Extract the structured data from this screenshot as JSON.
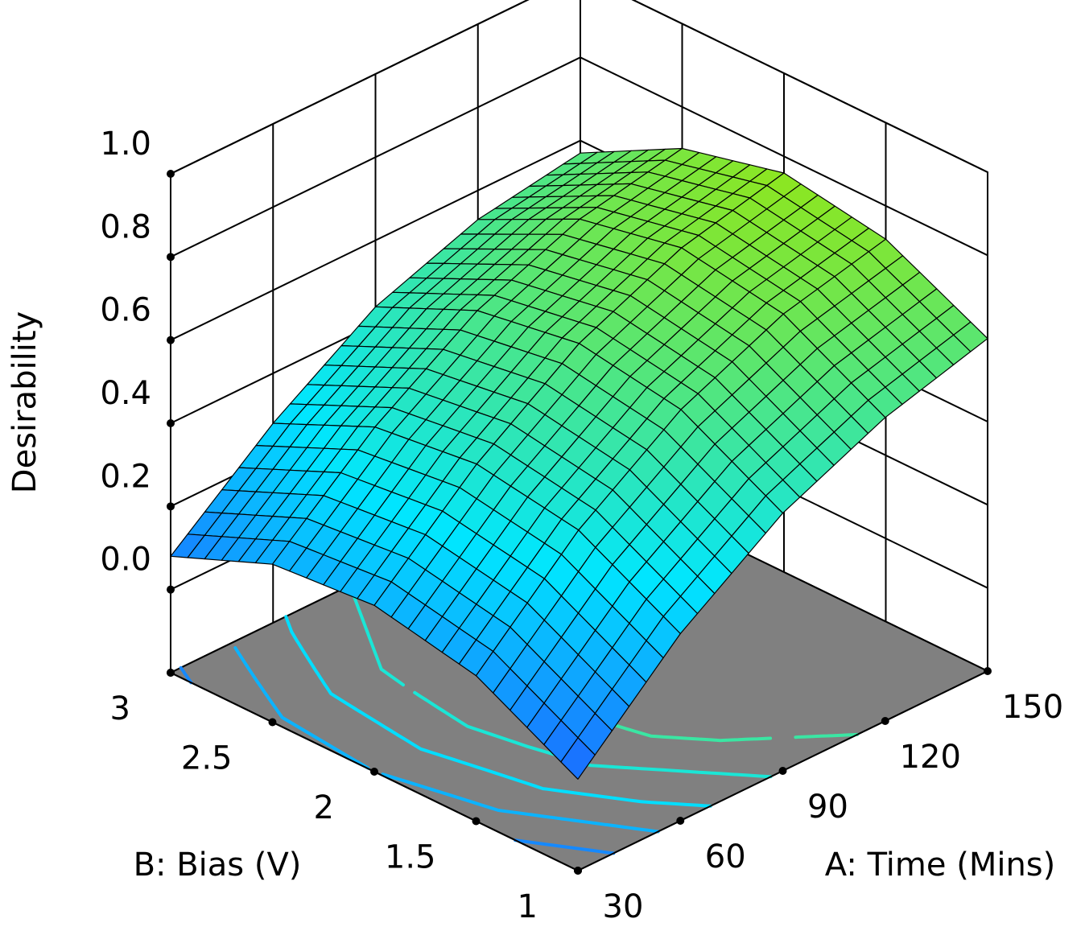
{
  "chart_data": {
    "type": "surface",
    "title": "",
    "x_axis": {
      "label": "A: Time (Mins)",
      "range": [
        30,
        150
      ],
      "ticks": [
        30,
        60,
        90,
        120,
        150
      ],
      "tick_labels": [
        "30",
        "60",
        "90",
        "120",
        "150"
      ]
    },
    "y_axis": {
      "label": "B: Bias (V)",
      "range": [
        1,
        3
      ],
      "ticks": [
        1,
        1.5,
        2,
        2.5,
        3
      ],
      "tick_labels": [
        "1",
        "1.5",
        "2",
        "2.5",
        "3"
      ]
    },
    "z_axis": {
      "label": "Desirability",
      "range": [
        -0.2,
        1.0
      ],
      "ticks": [
        0.0,
        0.2,
        0.4,
        0.6,
        0.8,
        1.0
      ],
      "tick_labels": [
        "0.0",
        "0.2",
        "0.4",
        "0.6",
        "0.8",
        "1.0"
      ]
    },
    "surface_grid": {
      "time": [
        30,
        60,
        90,
        120,
        150
      ],
      "bias": [
        1,
        1.5,
        2,
        2.5,
        3
      ],
      "desirability": [
        [
          0.02,
          0.25,
          0.42,
          0.53,
          0.6
        ],
        [
          0.15,
          0.38,
          0.55,
          0.66,
          0.72
        ],
        [
          0.2,
          0.42,
          0.59,
          0.7,
          0.76
        ],
        [
          0.18,
          0.39,
          0.55,
          0.65,
          0.7
        ],
        [
          0.08,
          0.28,
          0.44,
          0.53,
          0.57
        ]
      ]
    },
    "contour_levels": [
      0.1,
      0.2,
      0.3,
      0.4,
      0.5
    ],
    "colors": {
      "low": "#1e5fff",
      "mid": "#00e6ff",
      "high": "#9be60a",
      "floor": "#808080",
      "mesh": "#000000"
    },
    "grid": true
  }
}
